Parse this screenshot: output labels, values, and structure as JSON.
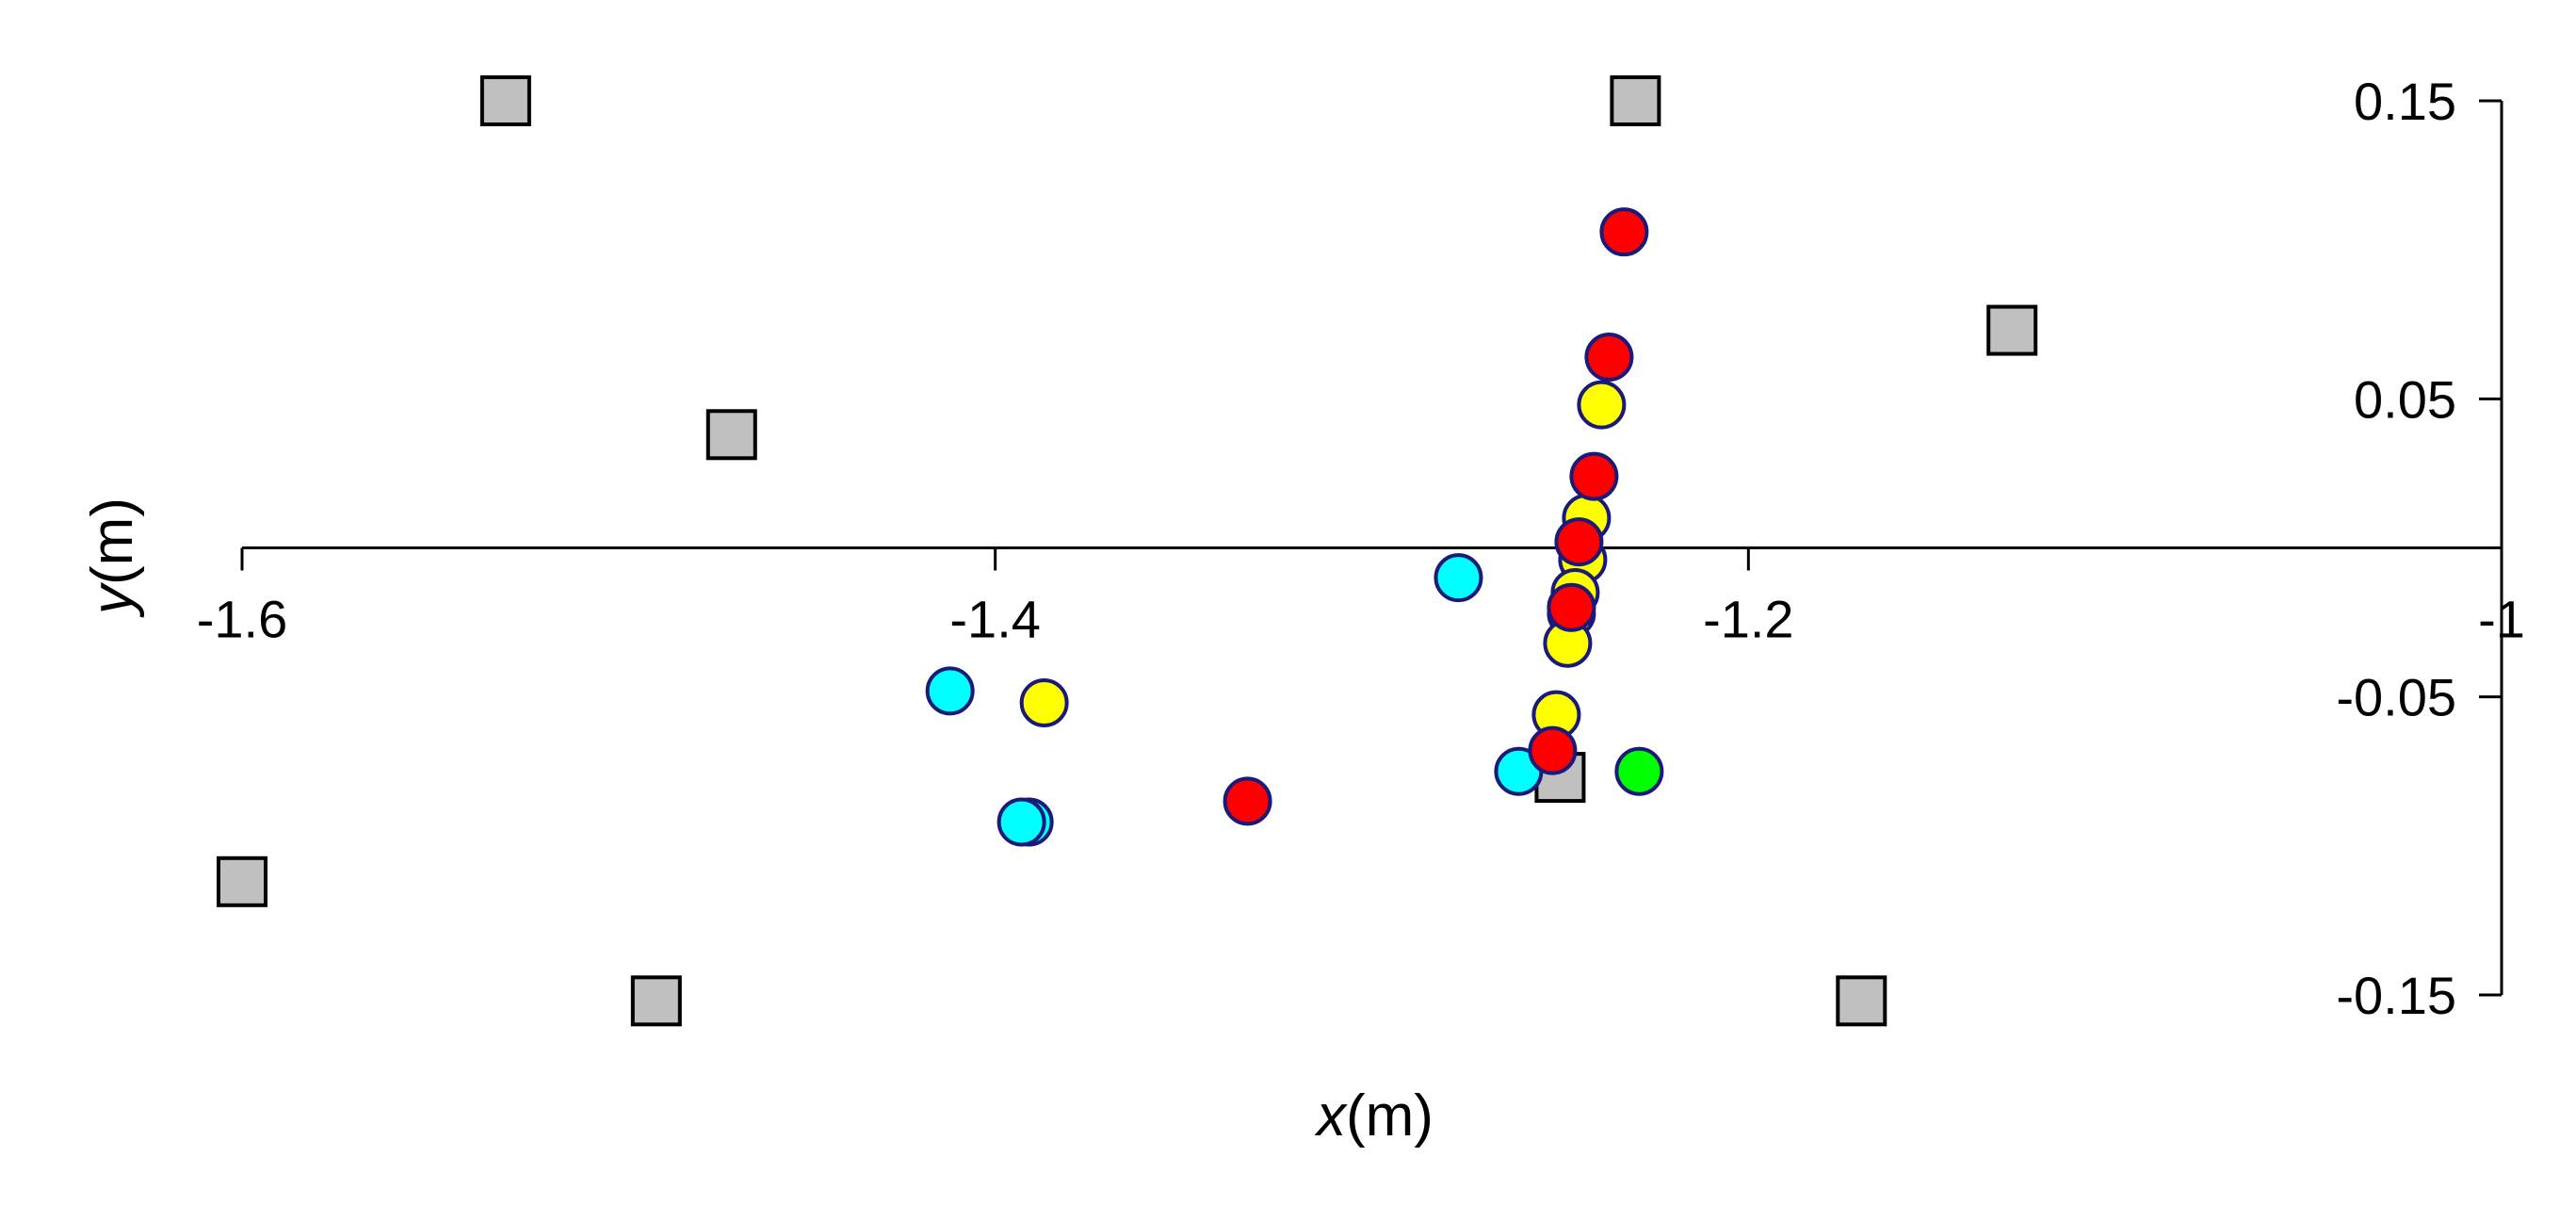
{
  "chart_data": {
    "type": "scatter",
    "xlabel_var": "x",
    "xlabel_unit": "(m)",
    "ylabel_var": "y",
    "ylabel_unit": "(m)",
    "xlim": [
      -1.6,
      -1.0
    ],
    "ylim": [
      -0.15,
      0.15
    ],
    "x_ticks": [
      {
        "value": -1.6,
        "label": "-1.6"
      },
      {
        "value": -1.4,
        "label": "-1.4"
      },
      {
        "value": -1.2,
        "label": "-1.2"
      },
      {
        "value": -1.0,
        "label": "-1"
      }
    ],
    "y_ticks": [
      {
        "value": 0.15,
        "label": "0.15"
      },
      {
        "value": 0.05,
        "label": "0.05"
      },
      {
        "value": -0.05,
        "label": "-0.05"
      },
      {
        "value": -0.15,
        "label": "-0.15"
      }
    ],
    "grid": false,
    "legend": "none",
    "colors": {
      "red": "#ff0000",
      "yellow": "#ffff00",
      "cyan": "#00ffff",
      "green": "#00ff00",
      "gray": "#c0c0c0",
      "circle_edge": "#1a1a7a",
      "square_edge": "#000000"
    },
    "series": [
      {
        "marker": "square",
        "color": "gray",
        "points": [
          [
            -1.53,
            0.15
          ],
          [
            -1.23,
            0.15
          ],
          [
            -1.13,
            0.073
          ],
          [
            -1.47,
            0.038
          ],
          [
            -1.25,
            -0.077
          ],
          [
            -1.6,
            -0.112
          ],
          [
            -1.49,
            -0.152
          ],
          [
            -1.17,
            -0.152
          ]
        ]
      },
      {
        "marker": "circle",
        "color": "cyan",
        "points": [
          [
            -1.277,
            -0.01
          ],
          [
            -1.412,
            -0.048
          ],
          [
            -1.391,
            -0.092
          ],
          [
            -1.393,
            -0.092
          ],
          [
            -1.261,
            -0.075
          ]
        ]
      },
      {
        "marker": "circle",
        "color": "yellow",
        "points": [
          [
            -1.239,
            0.048
          ],
          [
            -1.243,
            0.01
          ],
          [
            -1.244,
            -0.004
          ],
          [
            -1.246,
            -0.015
          ],
          [
            -1.247,
            -0.022
          ],
          [
            -1.248,
            -0.032
          ],
          [
            -1.251,
            -0.056
          ],
          [
            -1.387,
            -0.052
          ]
        ]
      },
      {
        "marker": "circle",
        "color": "green",
        "points": [
          [
            -1.229,
            -0.075
          ]
        ]
      },
      {
        "marker": "circle",
        "color": "red",
        "points": [
          [
            -1.233,
            0.106
          ],
          [
            -1.237,
            0.064
          ],
          [
            -1.241,
            0.024
          ],
          [
            -1.245,
            0.002
          ],
          [
            -1.247,
            -0.02
          ],
          [
            -1.252,
            -0.068
          ],
          [
            -1.333,
            -0.085
          ]
        ]
      }
    ]
  }
}
